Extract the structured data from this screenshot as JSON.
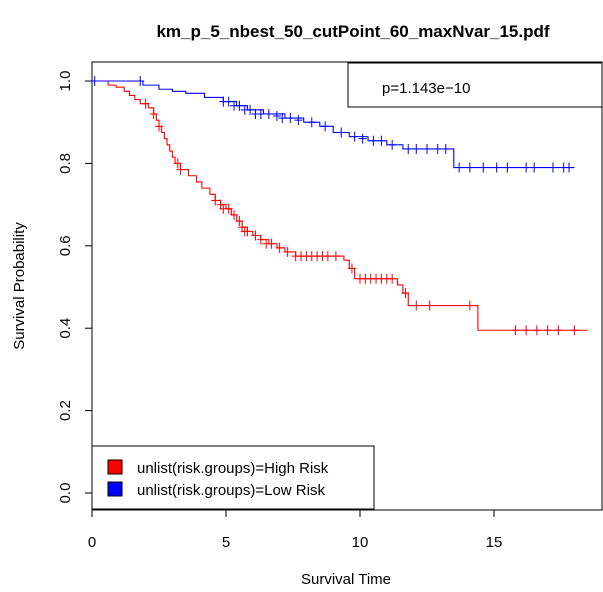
{
  "chart_data": {
    "type": "line",
    "title": "km_p_5_nbest_50_cutPoint_60_maxNvar_15.pdf",
    "xlabel": "Survival Time",
    "ylabel": "Survival Probability",
    "xlim": [
      0,
      18.5
    ],
    "ylim": [
      0,
      1
    ],
    "xticks": [
      0,
      5,
      10,
      15
    ],
    "yticks": [
      0.0,
      0.2,
      0.4,
      0.6,
      0.8,
      1.0
    ],
    "xtick_labels": [
      "0",
      "5",
      "10",
      "15"
    ],
    "ytick_labels": [
      "0.0",
      "0.2",
      "0.4",
      "0.6",
      "0.8",
      "1.0"
    ],
    "grid": false,
    "annotation": "p=1.143e−10",
    "legend_position": "bottom-left",
    "series": [
      {
        "name": "unlist(risk.groups)=High Risk",
        "color": "#ff0000",
        "steps": [
          [
            0,
            1.0
          ],
          [
            0.6,
            0.99
          ],
          [
            0.9,
            0.985
          ],
          [
            1.2,
            0.975
          ],
          [
            1.4,
            0.965
          ],
          [
            1.6,
            0.955
          ],
          [
            1.8,
            0.945
          ],
          [
            2.1,
            0.935
          ],
          [
            2.3,
            0.92
          ],
          [
            2.4,
            0.905
          ],
          [
            2.5,
            0.89
          ],
          [
            2.6,
            0.875
          ],
          [
            2.7,
            0.86
          ],
          [
            2.8,
            0.845
          ],
          [
            2.9,
            0.83
          ],
          [
            3.0,
            0.815
          ],
          [
            3.1,
            0.8
          ],
          [
            3.3,
            0.785
          ],
          [
            3.6,
            0.77
          ],
          [
            3.9,
            0.755
          ],
          [
            4.1,
            0.74
          ],
          [
            4.4,
            0.725
          ],
          [
            4.6,
            0.71
          ],
          [
            4.8,
            0.7
          ],
          [
            5.0,
            0.69
          ],
          [
            5.2,
            0.675
          ],
          [
            5.4,
            0.66
          ],
          [
            5.6,
            0.645
          ],
          [
            5.8,
            0.635
          ],
          [
            6.0,
            0.625
          ],
          [
            6.3,
            0.615
          ],
          [
            6.6,
            0.605
          ],
          [
            6.9,
            0.595
          ],
          [
            7.2,
            0.585
          ],
          [
            7.6,
            0.575
          ],
          [
            9.4,
            0.565
          ],
          [
            9.6,
            0.545
          ],
          [
            9.8,
            0.52
          ],
          [
            11.4,
            0.505
          ],
          [
            11.6,
            0.485
          ],
          [
            11.8,
            0.455
          ],
          [
            12.9,
            0.455
          ],
          [
            14.4,
            0.395
          ],
          [
            18.5,
            0.395
          ]
        ],
        "censor": [
          [
            2.0,
            0.945
          ],
          [
            2.3,
            0.92
          ],
          [
            2.5,
            0.89
          ],
          [
            3.2,
            0.8
          ],
          [
            3.3,
            0.785
          ],
          [
            4.6,
            0.71
          ],
          [
            4.8,
            0.7
          ],
          [
            4.9,
            0.69
          ],
          [
            5.1,
            0.69
          ],
          [
            5.3,
            0.675
          ],
          [
            5.5,
            0.66
          ],
          [
            5.6,
            0.645
          ],
          [
            5.7,
            0.635
          ],
          [
            5.8,
            0.635
          ],
          [
            6.1,
            0.625
          ],
          [
            6.3,
            0.615
          ],
          [
            6.5,
            0.605
          ],
          [
            6.7,
            0.605
          ],
          [
            7.0,
            0.595
          ],
          [
            7.3,
            0.585
          ],
          [
            7.6,
            0.575
          ],
          [
            7.8,
            0.575
          ],
          [
            8.0,
            0.575
          ],
          [
            8.2,
            0.575
          ],
          [
            8.4,
            0.575
          ],
          [
            8.6,
            0.575
          ],
          [
            8.8,
            0.575
          ],
          [
            9.1,
            0.575
          ],
          [
            9.7,
            0.545
          ],
          [
            10.0,
            0.52
          ],
          [
            10.2,
            0.52
          ],
          [
            10.4,
            0.52
          ],
          [
            10.6,
            0.52
          ],
          [
            10.8,
            0.52
          ],
          [
            11.0,
            0.52
          ],
          [
            11.2,
            0.52
          ],
          [
            11.7,
            0.485
          ],
          [
            12.1,
            0.455
          ],
          [
            12.6,
            0.455
          ],
          [
            14.1,
            0.455
          ],
          [
            15.8,
            0.395
          ],
          [
            16.2,
            0.395
          ],
          [
            16.6,
            0.395
          ],
          [
            17.0,
            0.395
          ],
          [
            17.4,
            0.395
          ],
          [
            18.0,
            0.395
          ]
        ]
      },
      {
        "name": "unlist(risk.groups)=Low Risk",
        "color": "#0000ff",
        "steps": [
          [
            0,
            1.0
          ],
          [
            1.9,
            0.99
          ],
          [
            2.5,
            0.98
          ],
          [
            3.0,
            0.975
          ],
          [
            3.5,
            0.97
          ],
          [
            4.2,
            0.96
          ],
          [
            4.9,
            0.95
          ],
          [
            5.4,
            0.94
          ],
          [
            5.8,
            0.93
          ],
          [
            6.4,
            0.92
          ],
          [
            7.2,
            0.91
          ],
          [
            7.9,
            0.9
          ],
          [
            8.5,
            0.89
          ],
          [
            9.0,
            0.875
          ],
          [
            9.6,
            0.865
          ],
          [
            10.3,
            0.855
          ],
          [
            11.0,
            0.845
          ],
          [
            11.6,
            0.835
          ],
          [
            13.5,
            0.79
          ],
          [
            18.0,
            0.79
          ]
        ],
        "censor": [
          [
            0.1,
            1.0
          ],
          [
            1.8,
            1.0
          ],
          [
            4.9,
            0.95
          ],
          [
            5.1,
            0.95
          ],
          [
            5.3,
            0.94
          ],
          [
            5.5,
            0.94
          ],
          [
            5.7,
            0.93
          ],
          [
            5.9,
            0.93
          ],
          [
            6.1,
            0.92
          ],
          [
            6.3,
            0.92
          ],
          [
            6.6,
            0.92
          ],
          [
            6.9,
            0.915
          ],
          [
            7.1,
            0.91
          ],
          [
            7.4,
            0.91
          ],
          [
            7.7,
            0.905
          ],
          [
            8.2,
            0.9
          ],
          [
            8.7,
            0.89
          ],
          [
            9.3,
            0.875
          ],
          [
            9.8,
            0.865
          ],
          [
            10.1,
            0.86
          ],
          [
            10.5,
            0.855
          ],
          [
            10.8,
            0.855
          ],
          [
            11.2,
            0.845
          ],
          [
            11.8,
            0.835
          ],
          [
            12.1,
            0.835
          ],
          [
            12.5,
            0.835
          ],
          [
            12.9,
            0.835
          ],
          [
            13.2,
            0.835
          ],
          [
            13.7,
            0.79
          ],
          [
            14.1,
            0.79
          ],
          [
            14.6,
            0.79
          ],
          [
            15.1,
            0.79
          ],
          [
            15.5,
            0.79
          ],
          [
            16.2,
            0.79
          ],
          [
            16.5,
            0.79
          ],
          [
            17.2,
            0.79
          ],
          [
            17.6,
            0.79
          ],
          [
            17.8,
            0.79
          ]
        ]
      }
    ]
  }
}
